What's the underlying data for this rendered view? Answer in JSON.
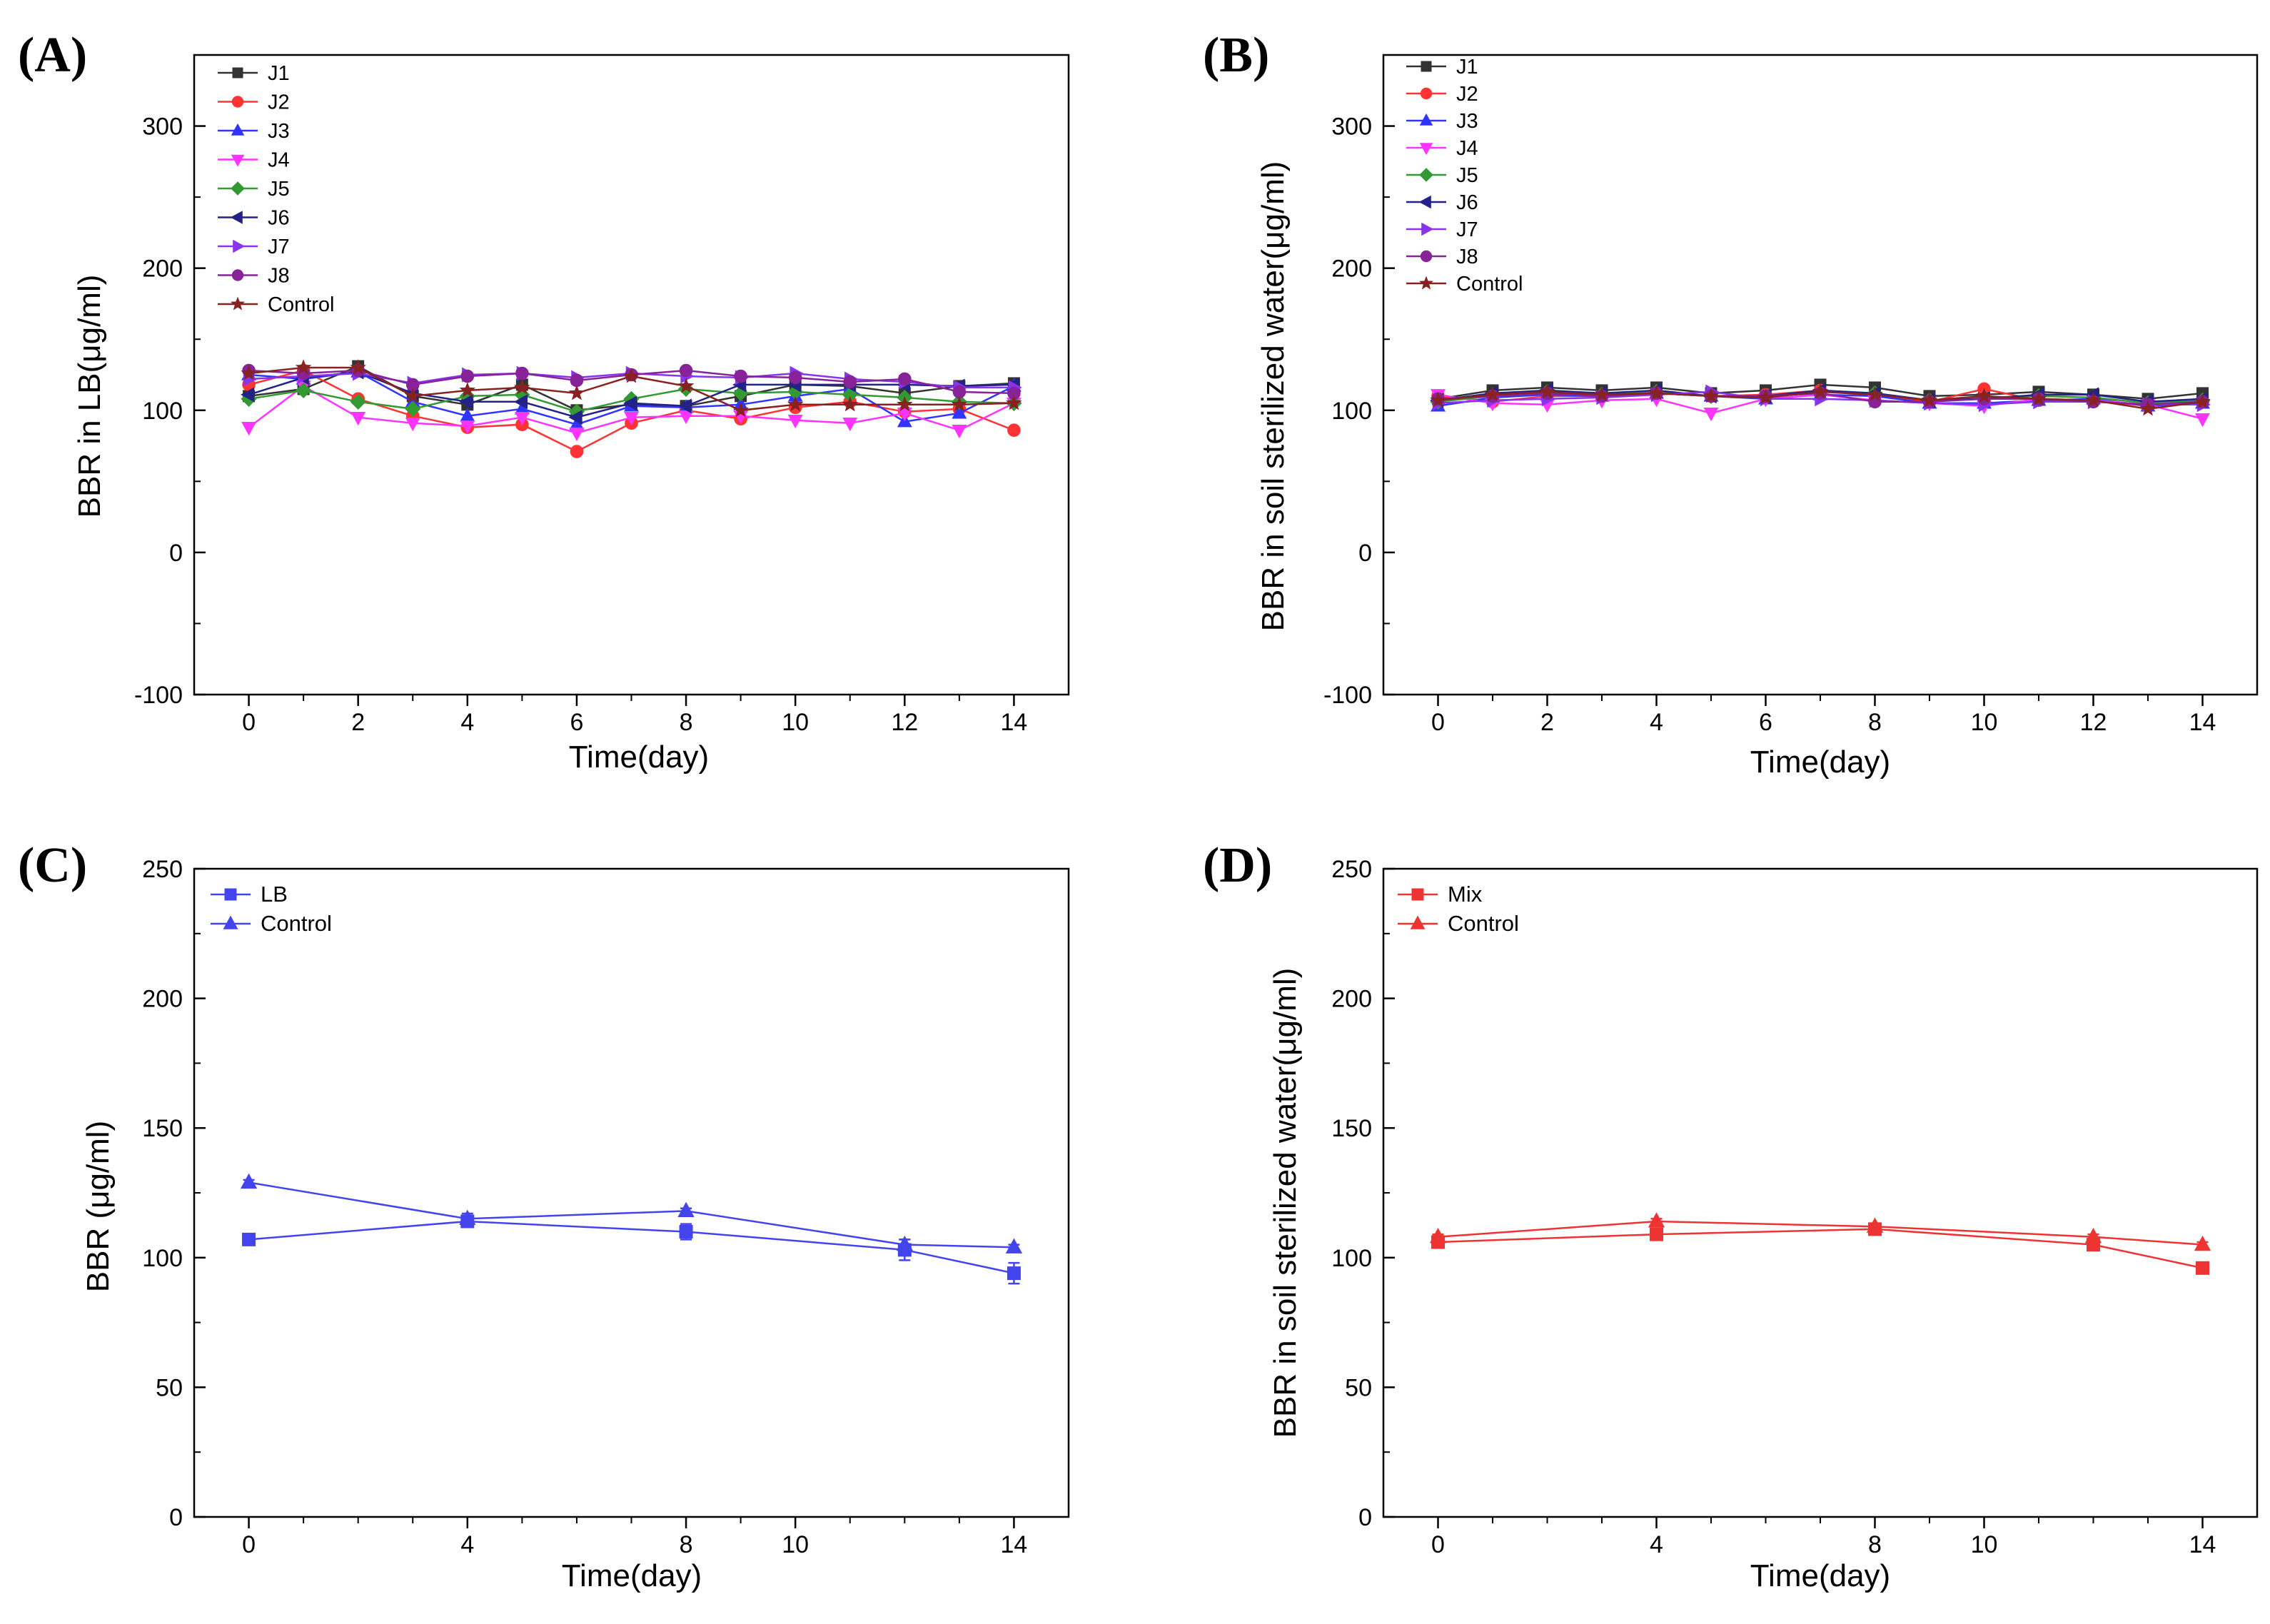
{
  "figure": {
    "colors": {
      "J1": "#333333",
      "J2": "#ff3333",
      "J3": "#3333ff",
      "J4": "#ff33ff",
      "J5": "#339933",
      "J6": "#222288",
      "J7": "#8833ee",
      "J8": "#882299",
      "Control": "#882222",
      "blue": "#4444ee",
      "red": "#ee3333"
    }
  },
  "chart_data": [
    {
      "panel_label": "(A)",
      "type": "line",
      "xlabel": "Time(day)",
      "ylabel": "BBR in LB(μg/ml)",
      "xlim": [
        -1,
        15
      ],
      "ylim": [
        -100,
        350
      ],
      "xticks": [
        0,
        2,
        4,
        6,
        8,
        10,
        12,
        14
      ],
      "yticks": [
        -100,
        0,
        100,
        200,
        300
      ],
      "x": [
        0,
        1,
        2,
        3,
        4,
        5,
        6,
        7,
        8,
        9,
        10,
        11,
        12,
        13,
        14
      ],
      "series": [
        {
          "name": "J1",
          "marker": "square",
          "color": "#333333",
          "values": [
            110,
            115,
            131,
            110,
            104,
            118,
            100,
            104,
            103,
            110,
            118,
            117,
            112,
            117,
            119
          ]
        },
        {
          "name": "J2",
          "marker": "circle",
          "color": "#ff3333",
          "values": [
            118,
            128,
            108,
            96,
            88,
            90,
            71,
            91,
            100,
            94,
            102,
            106,
            99,
            101,
            86
          ]
        },
        {
          "name": "J3",
          "marker": "triangle-up",
          "color": "#3333ff",
          "values": [
            125,
            122,
            127,
            106,
            96,
            101,
            90,
            103,
            102,
            104,
            110,
            115,
            92,
            98,
            117
          ]
        },
        {
          "name": "J4",
          "marker": "triangle-down",
          "color": "#ff33ff",
          "values": [
            88,
            117,
            95,
            91,
            89,
            95,
            84,
            95,
            96,
            96,
            93,
            91,
            98,
            86,
            105
          ]
        },
        {
          "name": "J5",
          "marker": "diamond",
          "color": "#339933",
          "values": [
            108,
            114,
            106,
            101,
            110,
            111,
            99,
            108,
            115,
            112,
            113,
            111,
            109,
            106,
            105
          ]
        },
        {
          "name": "J6",
          "marker": "triangle-left",
          "color": "#222288",
          "values": [
            111,
            123,
            127,
            112,
            106,
            106,
            95,
            105,
            103,
            118,
            118,
            118,
            118,
            117,
            118
          ]
        },
        {
          "name": "J7",
          "marker": "triangle-right",
          "color": "#8833ee",
          "values": [
            122,
            124,
            126,
            119,
            125,
            126,
            123,
            126,
            124,
            123,
            126,
            122,
            120,
            116,
            116
          ]
        },
        {
          "name": "J8",
          "marker": "circle",
          "color": "#882299",
          "values": [
            128,
            126,
            128,
            118,
            124,
            126,
            121,
            125,
            128,
            124,
            123,
            120,
            122,
            113,
            112
          ]
        },
        {
          "name": "Control",
          "marker": "star",
          "color": "#882222",
          "values": [
            126,
            130,
            130,
            110,
            114,
            116,
            112,
            124,
            117,
            100,
            104,
            104,
            104,
            104,
            105
          ]
        }
      ]
    },
    {
      "panel_label": "(B)",
      "type": "line",
      "xlabel": "Time(day)",
      "ylabel": "BBR in soil sterilized water(μg/ml)",
      "xlim": [
        -1,
        15
      ],
      "ylim": [
        -100,
        350
      ],
      "xticks": [
        0,
        2,
        4,
        6,
        8,
        10,
        12,
        14
      ],
      "yticks": [
        -100,
        0,
        100,
        200,
        300
      ],
      "x": [
        0,
        1,
        2,
        3,
        4,
        5,
        6,
        7,
        8,
        9,
        10,
        11,
        12,
        13,
        14
      ],
      "series": [
        {
          "name": "J1",
          "marker": "square",
          "color": "#333333",
          "values": [
            108,
            114,
            116,
            114,
            116,
            112,
            114,
            118,
            116,
            110,
            111,
            113,
            111,
            108,
            112
          ]
        },
        {
          "name": "J2",
          "marker": "circle",
          "color": "#ff3333",
          "values": [
            110,
            106,
            110,
            110,
            112,
            110,
            111,
            114,
            110,
            106,
            115,
            107,
            107,
            103,
            106
          ]
        },
        {
          "name": "J3",
          "marker": "triangle-up",
          "color": "#3333ff",
          "values": [
            103,
            109,
            111,
            110,
            112,
            110,
            108,
            111,
            110,
            105,
            105,
            107,
            108,
            103,
            105
          ]
        },
        {
          "name": "J4",
          "marker": "triangle-down",
          "color": "#ff33ff",
          "values": [
            111,
            105,
            104,
            107,
            108,
            98,
            108,
            111,
            107,
            105,
            103,
            108,
            107,
            104,
            94
          ]
        },
        {
          "name": "J5",
          "marker": "diamond",
          "color": "#339933",
          "values": [
            106,
            110,
            113,
            111,
            113,
            110,
            110,
            113,
            112,
            107,
            109,
            110,
            109,
            105,
            107
          ]
        },
        {
          "name": "J6",
          "marker": "triangle-left",
          "color": "#222288",
          "values": [
            107,
            112,
            114,
            112,
            114,
            110,
            110,
            114,
            112,
            107,
            108,
            111,
            111,
            106,
            108
          ]
        },
        {
          "name": "J7",
          "marker": "triangle-right",
          "color": "#8833ee",
          "values": [
            105,
            107,
            108,
            109,
            111,
            113,
            108,
            108,
            107,
            105,
            104,
            106,
            106,
            104,
            104
          ]
        },
        {
          "name": "J8",
          "marker": "circle",
          "color": "#882299",
          "values": [
            108,
            110,
            112,
            110,
            112,
            110,
            110,
            112,
            106,
            106,
            108,
            108,
            106,
            104,
            106
          ]
        },
        {
          "name": "Control",
          "marker": "star",
          "color": "#882222",
          "values": [
            107,
            111,
            113,
            111,
            112,
            110,
            109,
            113,
            111,
            107,
            110,
            108,
            107,
            101,
            106
          ]
        }
      ]
    },
    {
      "panel_label": "(C)",
      "type": "line",
      "xlabel": "Time(day)",
      "ylabel": "BBR (μg/ml)",
      "xlim": [
        -1,
        15
      ],
      "ylim": [
        0,
        250
      ],
      "xticks": [
        0,
        4,
        8,
        10,
        14
      ],
      "yticks": [
        0,
        50,
        100,
        150,
        200,
        250
      ],
      "x": [
        0,
        4,
        8,
        12,
        14
      ],
      "series": [
        {
          "name": "LB",
          "marker": "square",
          "color": "#4444ee",
          "values": [
            107,
            114,
            110,
            103,
            94
          ],
          "errors": [
            2,
            2,
            3,
            4,
            4
          ]
        },
        {
          "name": "Control",
          "marker": "triangle-up",
          "color": "#4444ee",
          "values": [
            129,
            115,
            118,
            105,
            104
          ],
          "errors": [
            1,
            2,
            1,
            2,
            1
          ]
        }
      ]
    },
    {
      "panel_label": "(D)",
      "type": "line",
      "xlabel": "Time(day)",
      "ylabel": "BBR in soil sterilized water(μg/ml)",
      "xlim": [
        -1,
        15
      ],
      "ylim": [
        0,
        250
      ],
      "xticks": [
        0,
        4,
        8,
        10,
        14
      ],
      "yticks": [
        0,
        50,
        100,
        150,
        200,
        250
      ],
      "x": [
        0,
        4,
        8,
        12,
        14
      ],
      "series": [
        {
          "name": "Mix",
          "marker": "square",
          "color": "#ee3333",
          "values": [
            106,
            109,
            111,
            105,
            96
          ],
          "errors": [
            1,
            1,
            2,
            2,
            1
          ]
        },
        {
          "name": "Control",
          "marker": "triangle-up",
          "color": "#ee3333",
          "values": [
            108,
            114,
            112,
            108,
            105
          ],
          "errors": [
            1,
            1,
            1,
            1,
            1
          ]
        }
      ]
    }
  ]
}
